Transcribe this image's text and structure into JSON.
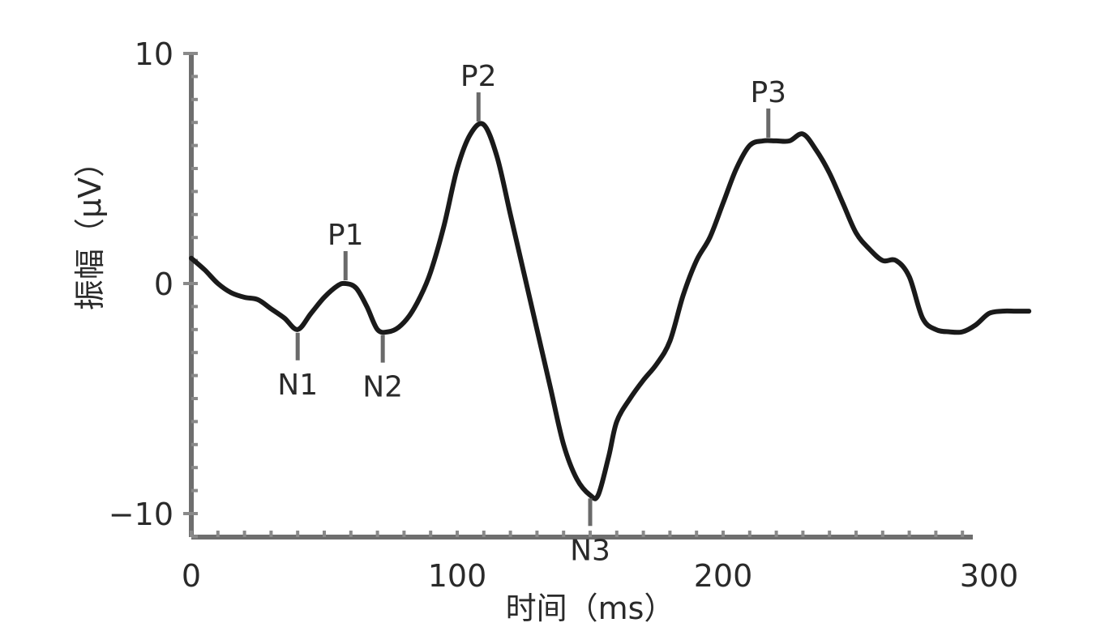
{
  "chart_data": {
    "type": "line",
    "title": "",
    "xlabel": "时间（ms）",
    "ylabel": "振幅（μV）",
    "xlim": [
      0,
      315
    ],
    "ylim": [
      -11,
      10
    ],
    "x_ticks": [
      {
        "value": 0,
        "label": "0"
      },
      {
        "value": 100,
        "label": "100"
      },
      {
        "value": 200,
        "label": "200"
      },
      {
        "value": 300,
        "label": "300"
      }
    ],
    "y_ticks": [
      {
        "value": 10,
        "label": "10"
      },
      {
        "value": 0,
        "label": "0"
      },
      {
        "value": -10,
        "label": "−10"
      }
    ],
    "grid": false,
    "legend": "none",
    "series": [
      {
        "color": "#1a1a1a",
        "x": [
          0,
          5,
          10,
          15,
          20,
          25,
          30,
          35,
          40,
          45,
          50,
          55,
          58,
          62,
          66,
          70,
          74,
          78,
          82,
          86,
          90,
          95,
          100,
          105,
          110,
          115,
          120,
          125,
          130,
          135,
          140,
          145,
          150,
          153,
          157,
          160,
          165,
          170,
          175,
          180,
          185,
          190,
          195,
          200,
          205,
          210,
          215,
          220,
          225,
          230,
          235,
          240,
          245,
          250,
          255,
          260,
          265,
          270,
          275,
          280,
          285,
          290,
          295,
          300,
          305,
          310,
          315
        ],
        "y": [
          1.1,
          0.6,
          0.0,
          -0.4,
          -0.6,
          -0.7,
          -1.1,
          -1.5,
          -2.0,
          -1.3,
          -0.6,
          -0.1,
          0.0,
          -0.2,
          -1.0,
          -2.0,
          -2.1,
          -1.9,
          -1.4,
          -0.6,
          0.5,
          2.5,
          5.0,
          6.5,
          6.9,
          5.5,
          3.0,
          0.5,
          -2.0,
          -4.5,
          -7.0,
          -8.5,
          -9.2,
          -9.2,
          -7.5,
          -6.0,
          -5.0,
          -4.2,
          -3.5,
          -2.5,
          -0.5,
          1.0,
          2.0,
          3.5,
          5.0,
          6.0,
          6.2,
          6.2,
          6.2,
          6.5,
          5.8,
          4.8,
          3.5,
          2.2,
          1.5,
          1.0,
          1.0,
          0.3,
          -1.5,
          -2.0,
          -2.1,
          -2.1,
          -1.8,
          -1.3,
          -1.2,
          -1.2,
          -1.2
        ]
      }
    ],
    "annotations": [
      {
        "label": "N1",
        "x": 40,
        "y": -2.0,
        "direction": "below"
      },
      {
        "label": "P1",
        "x": 58,
        "y": 0.0,
        "direction": "above"
      },
      {
        "label": "N2",
        "x": 72,
        "y": -2.1,
        "direction": "below"
      },
      {
        "label": "P2",
        "x": 108,
        "y": 6.9,
        "direction": "above"
      },
      {
        "label": "N3",
        "x": 150,
        "y": -9.2,
        "direction": "below"
      },
      {
        "label": "P3",
        "x": 217,
        "y": 6.2,
        "direction": "above"
      }
    ]
  }
}
